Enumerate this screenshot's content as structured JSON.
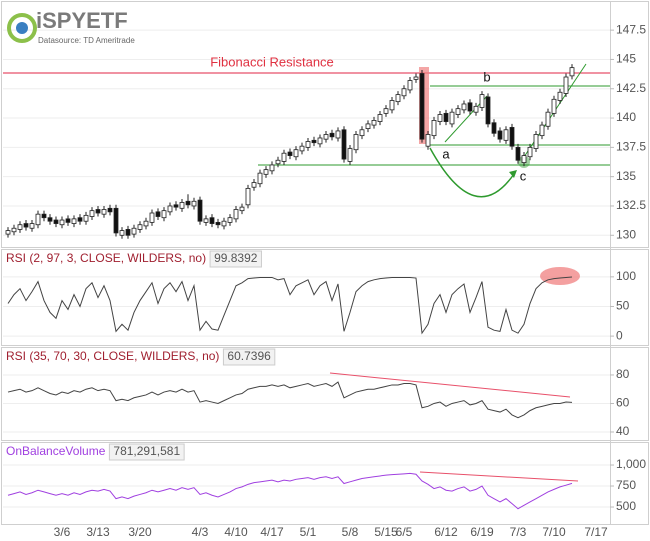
{
  "chart_data": [
    {
      "type": "candlestick",
      "logo": "iSPYETF",
      "source": "Datasource: TD Ameritrade",
      "annotations": [
        "Fibonacci Resistance",
        "a",
        "b",
        "c"
      ],
      "categories": [
        null,
        null,
        null,
        null,
        null,
        null,
        null,
        null,
        null,
        "3/6",
        null,
        null,
        null,
        null,
        null,
        "3/13",
        null,
        null,
        null,
        null,
        null,
        null,
        "3/20",
        null,
        null,
        null,
        null,
        null,
        null,
        null,
        null,
        null,
        "4/3",
        null,
        null,
        null,
        null,
        null,
        "4/10",
        null,
        null,
        null,
        null,
        null,
        "4/17",
        null,
        null,
        null,
        null,
        null,
        "5/1",
        null,
        null,
        null,
        null,
        null,
        null,
        "5/8",
        null,
        null,
        null,
        null,
        null,
        "5/15",
        null,
        null,
        "6/5",
        null,
        null,
        null,
        null,
        null,
        null,
        "6/12",
        null,
        null,
        null,
        null,
        null,
        "6/19",
        null,
        null,
        null,
        null,
        null,
        "7/3",
        null,
        null,
        null,
        null,
        null,
        "7/10",
        null,
        null,
        null,
        null,
        null,
        null,
        "7/17"
      ],
      "open": [
        130.1,
        130.3,
        130.5,
        131.0,
        130.6,
        130.9,
        131.8,
        131.5,
        131.3,
        130.9,
        131.4,
        131.0,
        131.5,
        131.2,
        131.6,
        132.2,
        131.8,
        132.3,
        132.3,
        130.0,
        130.5,
        130.1,
        130.5,
        130.8,
        131.1,
        132.0,
        131.5,
        132.0,
        132.6,
        132.3,
        132.9,
        132.5,
        133.0,
        131.1,
        131.5,
        131.1,
        130.8,
        131.1,
        131.4,
        132.1,
        132.6,
        134.1,
        134.4,
        135.2,
        135.5,
        136.1,
        136.3,
        137.1,
        136.7,
        137.2,
        137.5,
        138.1,
        137.8,
        138.2,
        138.7,
        138.3,
        139.0,
        136.3,
        137.3,
        138.5,
        139.1,
        139.4,
        139.7,
        140.4,
        140.7,
        141.4,
        141.9,
        142.4,
        143.3,
        143.8,
        137.6,
        138.5,
        139.7,
        140.4,
        139.5,
        140.3,
        140.7,
        141.3,
        140.5,
        140.9,
        141.8,
        139.6,
        138.9,
        138.1,
        139.2,
        137.5,
        136.2,
        136.7,
        137.4,
        138.5,
        139.3,
        140.4,
        141.5,
        142.1,
        143.6,
        null,
        null,
        null,
        null
      ],
      "high": [
        130.7,
        130.9,
        131.2,
        131.3,
        131.3,
        132.1,
        132.1,
        131.8,
        131.6,
        131.6,
        131.7,
        131.7,
        131.8,
        132.0,
        132.4,
        132.5,
        132.5,
        132.6,
        132.6,
        130.7,
        130.8,
        130.9,
        131.2,
        131.5,
        132.2,
        132.3,
        132.4,
        132.8,
        132.9,
        133.1,
        133.5,
        133.2,
        133.3,
        131.7,
        131.8,
        131.4,
        131.5,
        131.8,
        132.5,
        132.7,
        134.3,
        134.8,
        135.6,
        135.9,
        136.3,
        136.7,
        137.3,
        137.4,
        137.6,
        137.9,
        138.3,
        138.4,
        138.6,
        138.9,
        139.0,
        139.2,
        139.3,
        137.7,
        138.9,
        139.3,
        139.8,
        140.1,
        140.6,
        141.1,
        141.8,
        142.3,
        142.8,
        143.5,
        143.8,
        144.1,
        138.9,
        140.1,
        140.6,
        140.7,
        140.8,
        141.1,
        141.5,
        141.6,
        141.3,
        142.3,
        142.1,
        139.9,
        139.2,
        139.3,
        139.5,
        137.8,
        137.1,
        137.8,
        138.9,
        139.7,
        140.8,
        141.9,
        142.5,
        143.8,
        144.6,
        null,
        null,
        null,
        null
      ],
      "low": [
        129.8,
        130.0,
        130.2,
        130.4,
        130.3,
        130.6,
        131.2,
        130.9,
        130.7,
        130.6,
        130.8,
        130.7,
        130.9,
        130.9,
        131.3,
        131.6,
        131.5,
        131.7,
        129.9,
        129.7,
        129.7,
        129.8,
        130.2,
        130.5,
        130.8,
        131.3,
        131.2,
        131.7,
        132.1,
        132.0,
        132.3,
        132.2,
        130.9,
        130.8,
        130.7,
        130.6,
        130.5,
        130.8,
        131.1,
        131.8,
        132.3,
        133.8,
        134.1,
        134.9,
        135.2,
        135.8,
        136.0,
        136.5,
        136.4,
        136.9,
        137.2,
        137.6,
        137.5,
        137.9,
        138.1,
        138.0,
        136.2,
        136.0,
        137.0,
        138.2,
        138.8,
        139.1,
        139.4,
        140.1,
        140.4,
        141.1,
        141.6,
        142.1,
        143.0,
        137.9,
        137.3,
        138.2,
        139.4,
        139.4,
        139.2,
        140.0,
        140.4,
        140.3,
        140.2,
        140.6,
        139.2,
        138.4,
        137.9,
        137.8,
        137.3,
        136.1,
        135.9,
        136.4,
        137.1,
        138.2,
        139.0,
        140.1,
        141.2,
        141.8,
        143.3,
        null,
        null,
        null,
        null
      ],
      "close": [
        130.4,
        130.6,
        130.9,
        130.7,
        131.0,
        131.8,
        131.5,
        131.2,
        131.0,
        131.3,
        131.1,
        131.4,
        131.2,
        131.7,
        132.1,
        131.9,
        132.2,
        132.0,
        130.2,
        130.4,
        130.0,
        130.6,
        130.9,
        131.2,
        131.9,
        131.6,
        132.1,
        132.5,
        132.4,
        132.8,
        132.6,
        132.9,
        131.2,
        131.4,
        131.0,
        130.9,
        131.2,
        131.5,
        132.2,
        132.4,
        134.0,
        134.5,
        135.3,
        135.6,
        136.0,
        136.4,
        137.0,
        136.8,
        137.3,
        137.6,
        138.0,
        137.9,
        138.3,
        138.6,
        138.4,
        138.9,
        136.5,
        137.4,
        138.6,
        139.0,
        139.5,
        139.8,
        140.3,
        140.8,
        141.5,
        142.0,
        142.5,
        143.2,
        143.5,
        138.2,
        138.6,
        139.8,
        140.3,
        139.7,
        140.5,
        140.8,
        141.2,
        140.6,
        141.0,
        142.0,
        139.5,
        138.7,
        138.2,
        139.0,
        137.6,
        136.4,
        136.8,
        137.5,
        138.6,
        139.4,
        140.5,
        141.6,
        142.2,
        143.5,
        144.3,
        null,
        null,
        null,
        null
      ],
      "ylim": [
        129,
        149.9
      ],
      "yticks": [
        130,
        132.5,
        135,
        137.5,
        140,
        142.5,
        145,
        147.5
      ],
      "grid": true,
      "up_color": "#ffffff",
      "down_color": "#111111"
    },
    {
      "type": "line",
      "title": "RSI (2, 97, 3, CLOSE, WILDERS, no)",
      "color": "#444444",
      "values": [
        55,
        70,
        80,
        60,
        75,
        92,
        60,
        40,
        30,
        60,
        45,
        70,
        50,
        80,
        90,
        65,
        85,
        60,
        8,
        20,
        10,
        40,
        60,
        75,
        90,
        55,
        80,
        90,
        75,
        92,
        60,
        85,
        10,
        25,
        12,
        10,
        35,
        60,
        85,
        90,
        97,
        98,
        99,
        99,
        99,
        95,
        97,
        70,
        85,
        90,
        95,
        70,
        85,
        92,
        60,
        88,
        8,
        40,
        75,
        85,
        92,
        95,
        97,
        98,
        99,
        99,
        99,
        99,
        98,
        5,
        20,
        55,
        70,
        40,
        70,
        80,
        88,
        40,
        65,
        92,
        15,
        10,
        8,
        45,
        10,
        5,
        20,
        55,
        80,
        90,
        95,
        97,
        98,
        99,
        99.8392,
        null,
        null,
        null,
        null
      ],
      "ylim": [
        -15,
        147
      ],
      "yticks": [
        0,
        50,
        100
      ],
      "grid": true
    },
    {
      "type": "line",
      "title": "RSI (35, 70, 30, CLOSE, WILDERS, no)",
      "color": "#444444",
      "values": [
        68,
        69,
        70,
        68,
        69,
        71,
        69,
        67,
        66,
        68,
        67,
        69,
        68,
        70,
        71,
        69,
        70,
        69,
        62,
        63,
        62,
        64,
        65,
        66,
        68,
        66,
        68,
        69,
        68,
        70,
        68,
        69,
        61,
        62,
        61,
        60,
        62,
        64,
        66,
        67,
        70,
        71,
        72,
        72,
        73,
        72,
        73,
        71,
        72,
        73,
        74,
        72,
        73,
        74,
        72,
        75,
        64,
        66,
        68,
        69,
        70,
        70,
        71,
        72,
        73,
        73,
        74,
        74,
        73,
        57,
        58,
        60,
        61,
        58,
        60,
        61,
        62,
        59,
        60,
        62,
        56,
        55,
        54,
        56,
        52,
        50,
        52,
        55,
        57,
        58,
        59,
        60,
        60,
        61,
        60.7396,
        null,
        null,
        null,
        null
      ],
      "ylim": [
        34.4,
        99.6
      ],
      "yticks": [
        40,
        60,
        80
      ],
      "grid": true
    },
    {
      "type": "line",
      "title": "OnBalanceVolume",
      "current_label": "781,291,581",
      "color": "#a040e0",
      "values": [
        640,
        660,
        680,
        650,
        670,
        700,
        680,
        660,
        640,
        660,
        640,
        670,
        650,
        680,
        700,
        690,
        710,
        690,
        600,
        620,
        600,
        630,
        650,
        670,
        700,
        680,
        700,
        720,
        700,
        730,
        710,
        730,
        650,
        670,
        640,
        620,
        650,
        680,
        720,
        740,
        770,
        790,
        800,
        810,
        820,
        800,
        820,
        810,
        830,
        840,
        850,
        830,
        850,
        860,
        840,
        860,
        780,
        800,
        820,
        840,
        850,
        860,
        870,
        880,
        885,
        890,
        895,
        900,
        890,
        810,
        770,
        720,
        740,
        700,
        690,
        720,
        740,
        690,
        710,
        750,
        640,
        600,
        560,
        600,
        540,
        480,
        520,
        560,
        600,
        640,
        680,
        710,
        740,
        760,
        781.291581,
        null,
        null,
        null,
        null
      ],
      "ylim": [
        298,
        1274
      ],
      "yticks": [
        500,
        750,
        {
          "value": 1000,
          "label": "1,000"
        }
      ],
      "grid": true
    }
  ]
}
